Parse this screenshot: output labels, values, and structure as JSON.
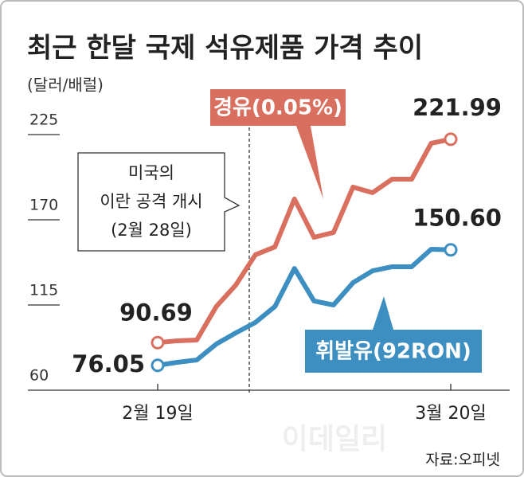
{
  "chart_data": {
    "type": "line",
    "title": "최근 한달 국제 석유제품 가격 추이",
    "y_label": "(달러/배럴)",
    "annotation": [
      "미국의",
      "이란 공격 개시",
      "(2월 28일)"
    ],
    "source": "자료:오피넷",
    "watermark": "이데일리",
    "categories": [
      "2월 19일",
      null,
      null,
      null,
      null,
      null,
      null,
      null,
      null,
      null,
      null,
      null,
      null,
      null,
      null,
      "3월 20일"
    ],
    "series": [
      {
        "name": "경유(0.05%)",
        "color": "#d9705f",
        "values": [
          90.69,
          91.9,
          92.4,
          114.0,
          127.9,
          147.4,
          152.5,
          183.4,
          158.7,
          161.8,
          191.1,
          187.5,
          196.2,
          196.2,
          219.4,
          221.99
        ],
        "value_labels": [
          "90.69",
          null,
          null,
          null,
          null,
          null,
          null,
          null,
          null,
          null,
          null,
          null,
          null,
          null,
          null,
          "221.99"
        ]
      },
      {
        "name": "휘발유(92RON)",
        "color": "#3d8fc1",
        "values": [
          76.05,
          78.0,
          79.5,
          89.8,
          97.0,
          103.7,
          114.0,
          138.6,
          117.6,
          115.0,
          129.4,
          137.1,
          139.7,
          139.7,
          151.0,
          150.6
        ],
        "value_labels": [
          "76.05",
          null,
          null,
          null,
          null,
          null,
          null,
          null,
          null,
          null,
          null,
          null,
          null,
          null,
          null,
          "150.60"
        ]
      }
    ],
    "ylim": [
      60,
      225
    ],
    "yticks": [
      60,
      115,
      170,
      225
    ]
  }
}
